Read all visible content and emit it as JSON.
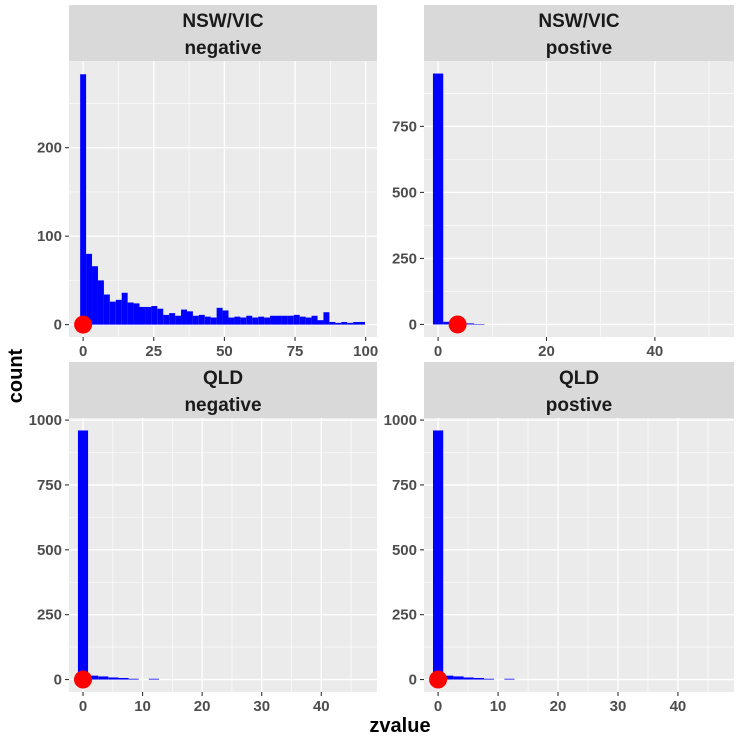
{
  "chart_data": {
    "type": "histogram",
    "xlabel": "zvalue",
    "ylabel": "count",
    "colors": {
      "bar": "#0000ff",
      "point": "#ff0000",
      "panel": "#ebebeb",
      "strip": "#d9d9d9",
      "grid": "#ffffff"
    },
    "panels": [
      {
        "id": "nsw-neg",
        "strip": [
          "NSW/VIC",
          "negative"
        ],
        "xlim": [
          -5,
          104
        ],
        "ylim": [
          -14,
          298
        ],
        "xticks": [
          0,
          25,
          50,
          75,
          100
        ],
        "xtick_labels": [
          "0",
          "25",
          "50",
          "75",
          "100"
        ],
        "yticks": [
          0,
          100,
          200
        ],
        "ytick_labels": [
          "0",
          "100",
          "200"
        ],
        "binwidth": 2.1,
        "bins": [
          {
            "x0": -1.05,
            "count": 283
          },
          {
            "x0": 1.05,
            "count": 80
          },
          {
            "x0": 3.15,
            "count": 66
          },
          {
            "x0": 5.25,
            "count": 50
          },
          {
            "x0": 7.35,
            "count": 34
          },
          {
            "x0": 9.45,
            "count": 26
          },
          {
            "x0": 11.55,
            "count": 28
          },
          {
            "x0": 13.65,
            "count": 36
          },
          {
            "x0": 15.75,
            "count": 25
          },
          {
            "x0": 17.85,
            "count": 24
          },
          {
            "x0": 19.95,
            "count": 20
          },
          {
            "x0": 22.05,
            "count": 20
          },
          {
            "x0": 24.15,
            "count": 21
          },
          {
            "x0": 26.25,
            "count": 18
          },
          {
            "x0": 28.35,
            "count": 11
          },
          {
            "x0": 30.45,
            "count": 13
          },
          {
            "x0": 32.55,
            "count": 10
          },
          {
            "x0": 34.65,
            "count": 17
          },
          {
            "x0": 36.75,
            "count": 15
          },
          {
            "x0": 38.85,
            "count": 10
          },
          {
            "x0": 40.95,
            "count": 11
          },
          {
            "x0": 43.05,
            "count": 9
          },
          {
            "x0": 45.15,
            "count": 8
          },
          {
            "x0": 47.25,
            "count": 19
          },
          {
            "x0": 49.35,
            "count": 16
          },
          {
            "x0": 51.45,
            "count": 8
          },
          {
            "x0": 53.55,
            "count": 9
          },
          {
            "x0": 55.65,
            "count": 8
          },
          {
            "x0": 57.75,
            "count": 10
          },
          {
            "x0": 59.85,
            "count": 8
          },
          {
            "x0": 61.95,
            "count": 9
          },
          {
            "x0": 64.05,
            "count": 8
          },
          {
            "x0": 66.15,
            "count": 10
          },
          {
            "x0": 68.25,
            "count": 10
          },
          {
            "x0": 70.35,
            "count": 10
          },
          {
            "x0": 72.45,
            "count": 10
          },
          {
            "x0": 74.55,
            "count": 11
          },
          {
            "x0": 76.65,
            "count": 9
          },
          {
            "x0": 78.75,
            "count": 8
          },
          {
            "x0": 80.85,
            "count": 10
          },
          {
            "x0": 82.95,
            "count": 5
          },
          {
            "x0": 85.05,
            "count": 14
          },
          {
            "x0": 87.15,
            "count": 3
          },
          {
            "x0": 89.25,
            "count": 2
          },
          {
            "x0": 91.35,
            "count": 3
          },
          {
            "x0": 93.45,
            "count": 2
          },
          {
            "x0": 95.55,
            "count": 3
          },
          {
            "x0": 97.65,
            "count": 3
          }
        ],
        "point": {
          "x": 0,
          "y": 0
        }
      },
      {
        "id": "nsw-pos",
        "strip": [
          "NSW/VIC",
          "postive"
        ],
        "xlim": [
          -2.6,
          54.6
        ],
        "ylim": [
          -47.5,
          997.5
        ],
        "xticks": [
          0,
          20,
          40
        ],
        "xtick_labels": [
          "0",
          "20",
          "40"
        ],
        "yticks": [
          0,
          250,
          500,
          750
        ],
        "ytick_labels": [
          "0",
          "250",
          "500",
          "750"
        ],
        "binwidth": 1.9,
        "bins": [
          {
            "x0": -0.95,
            "count": 950
          },
          {
            "x0": 0.95,
            "count": 10
          },
          {
            "x0": 2.85,
            "count": 8
          },
          {
            "x0": 4.75,
            "count": 4
          },
          {
            "x0": 6.65,
            "count": 1
          }
        ],
        "point": {
          "x": 3.6,
          "y": 0
        }
      },
      {
        "id": "qld-neg",
        "strip": [
          "QLD",
          "negative"
        ],
        "xlim": [
          -2.35,
          49.35
        ],
        "ylim": [
          -48,
          1008
        ],
        "xticks": [
          0,
          10,
          20,
          30,
          40
        ],
        "xtick_labels": [
          "0",
          "10",
          "20",
          "30",
          "40"
        ],
        "yticks": [
          0,
          250,
          500,
          750,
          1000
        ],
        "ytick_labels": [
          "0",
          "250",
          "500",
          "750",
          "1000"
        ],
        "binwidth": 1.7,
        "bins": [
          {
            "x0": -0.85,
            "count": 960
          },
          {
            "x0": 0.85,
            "count": 15
          },
          {
            "x0": 2.55,
            "count": 12
          },
          {
            "x0": 4.25,
            "count": 8
          },
          {
            "x0": 5.95,
            "count": 6
          },
          {
            "x0": 7.65,
            "count": 3
          },
          {
            "x0": 11.05,
            "count": 3
          }
        ],
        "point": {
          "x": 0,
          "y": 0
        }
      },
      {
        "id": "qld-pos",
        "strip": [
          "QLD",
          "postive"
        ],
        "xlim": [
          -2.35,
          49.35
        ],
        "ylim": [
          -48,
          1008
        ],
        "xticks": [
          0,
          10,
          20,
          30,
          40
        ],
        "xtick_labels": [
          "0",
          "10",
          "20",
          "30",
          "40"
        ],
        "yticks": [
          0,
          250,
          500,
          750,
          1000
        ],
        "ytick_labels": [
          "0",
          "250",
          "500",
          "750",
          "1000"
        ],
        "binwidth": 1.7,
        "bins": [
          {
            "x0": -0.85,
            "count": 960
          },
          {
            "x0": 0.85,
            "count": 15
          },
          {
            "x0": 2.55,
            "count": 12
          },
          {
            "x0": 4.25,
            "count": 8
          },
          {
            "x0": 5.95,
            "count": 6
          },
          {
            "x0": 7.65,
            "count": 3
          },
          {
            "x0": 11.05,
            "count": 3
          }
        ],
        "point": {
          "x": 0,
          "y": 0
        }
      }
    ]
  }
}
